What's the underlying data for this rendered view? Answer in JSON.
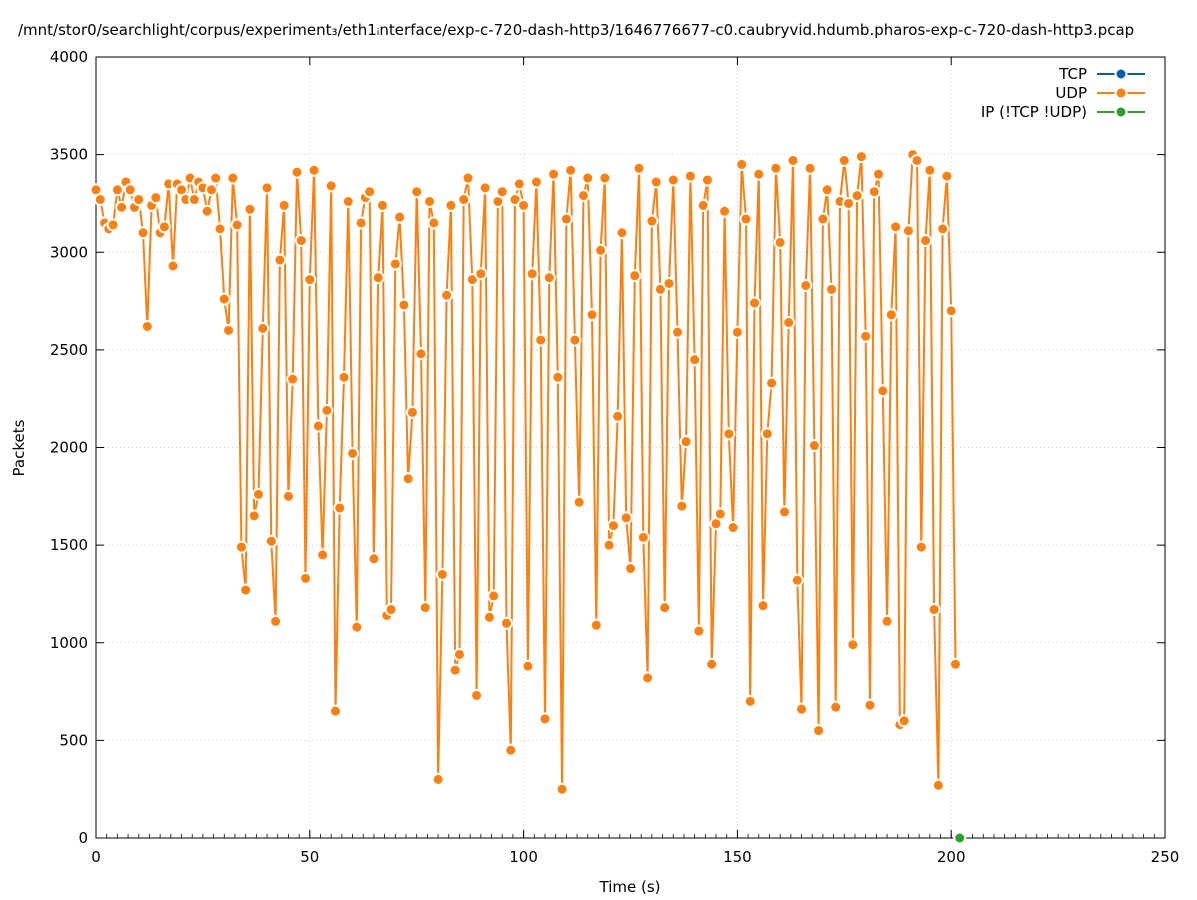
{
  "chart_data": {
    "type": "line",
    "title": "/mnt/stor0/searchlight/corpus/experiment₃/eth1ᵢnterface/exp-c-720-dash-http3/1646776677-c0.caubryvid.hdumb.pharos-exp-c-720-dash-http3.pcap",
    "xlabel": "Time (s)",
    "ylabel": "Packets",
    "xlim": [
      0,
      250
    ],
    "ylim": [
      0,
      4000
    ],
    "xticks": [
      0,
      50,
      100,
      150,
      200,
      250
    ],
    "yticks": [
      0,
      500,
      1000,
      1500,
      2000,
      2500,
      3000,
      3500,
      4000
    ],
    "grid": true,
    "legend_position": "top-right",
    "series": [
      {
        "name": "TCP",
        "color": "#0060ad",
        "x": [],
        "y": []
      },
      {
        "name": "UDP",
        "color": "#ff7f0e",
        "x": [
          0,
          1,
          2,
          3,
          4,
          5,
          6,
          7,
          8,
          9,
          10,
          11,
          12,
          13,
          14,
          15,
          16,
          17,
          18,
          19,
          20,
          21,
          22,
          23,
          24,
          25,
          26,
          27,
          28,
          29,
          30,
          31,
          32,
          33,
          34,
          35,
          36,
          37,
          38,
          39,
          40,
          41,
          42,
          43,
          44,
          45,
          46,
          47,
          48,
          49,
          50,
          51,
          52,
          53,
          54,
          55,
          56,
          57,
          58,
          59,
          60,
          61,
          62,
          63,
          64,
          65,
          66,
          67,
          68,
          69,
          70,
          71,
          72,
          73,
          74,
          75,
          76,
          77,
          78,
          79,
          80,
          81,
          82,
          83,
          84,
          85,
          86,
          87,
          88,
          89,
          90,
          91,
          92,
          93,
          94,
          95,
          96,
          97,
          98,
          99,
          100,
          101,
          102,
          103,
          104,
          105,
          106,
          107,
          108,
          109,
          110,
          111,
          112,
          113,
          114,
          115,
          116,
          117,
          118,
          119,
          120,
          121,
          122,
          123,
          124,
          125,
          126,
          127,
          128,
          129,
          130,
          131,
          132,
          133,
          134,
          135,
          136,
          137,
          138,
          139,
          140,
          141,
          142,
          143,
          144,
          145,
          146,
          147,
          148,
          149,
          150,
          151,
          152,
          153,
          154,
          155,
          156,
          157,
          158,
          159,
          160,
          161,
          162,
          163,
          164,
          165,
          166,
          167,
          168,
          169,
          170,
          171,
          172,
          173,
          174,
          175,
          176,
          177,
          178,
          179,
          180,
          181,
          182,
          183,
          184,
          185,
          186,
          187,
          188,
          189,
          190,
          191,
          192,
          193,
          194,
          195,
          196,
          197,
          198,
          199,
          200,
          201
        ],
        "y": [
          3320,
          3270,
          3150,
          3120,
          3140,
          3320,
          3230,
          3360,
          3320,
          3230,
          3270,
          3100,
          2620,
          3240,
          3280,
          3100,
          3130,
          3350,
          2930,
          3350,
          3320,
          3270,
          3380,
          3270,
          3360,
          3330,
          3210,
          3320,
          3380,
          3120,
          2760,
          2600,
          3380,
          3140,
          1490,
          1270,
          3220,
          1650,
          1760,
          2610,
          3330,
          1520,
          1110,
          2960,
          3240,
          1750,
          2350,
          3410,
          3060,
          1330,
          2860,
          3420,
          2110,
          1450,
          2190,
          3340,
          650,
          1690,
          2360,
          3260,
          1970,
          1080,
          3150,
          3280,
          3310,
          1430,
          2870,
          3240,
          1140,
          1170,
          2940,
          3180,
          2730,
          1840,
          2180,
          3310,
          2480,
          1180,
          3260,
          3150,
          300,
          1350,
          2780,
          3240,
          860,
          940,
          3270,
          3380,
          2860,
          730,
          2890,
          3330,
          1130,
          1240,
          3260,
          3310,
          1100,
          450,
          3270,
          3350,
          3240,
          880,
          2890,
          3360,
          2550,
          610,
          2870,
          3400,
          2360,
          250,
          3170,
          3420,
          2550,
          1720,
          3290,
          3380,
          2680,
          1090,
          3010,
          3380,
          1500,
          1600,
          2160,
          3100,
          1640,
          1380,
          2880,
          3430,
          1540,
          820,
          3160,
          3360,
          2810,
          1180,
          2840,
          3370,
          2590,
          1700,
          2030,
          3390,
          2450,
          1060,
          3240,
          3370,
          890,
          1610,
          1660,
          3210,
          2070,
          1590,
          2590,
          3450,
          3170,
          700,
          2740,
          3400,
          1190,
          2070,
          2330,
          3430,
          3050,
          1670,
          2640,
          3470,
          1320,
          660,
          2830,
          3430,
          2010,
          550,
          3170,
          3320,
          2810,
          670,
          3260,
          3470,
          3250,
          990,
          3290,
          3490,
          2570,
          680,
          3310,
          3400,
          2290,
          1110,
          2680,
          3130,
          580,
          600,
          3110,
          3500,
          3470,
          1490,
          3060,
          3420,
          1170,
          270,
          3120,
          3390,
          2700,
          890
        ]
      },
      {
        "name": "IP (!TCP  !UDP)",
        "color": "#2ca02c",
        "x": [
          202
        ],
        "y": [
          0
        ]
      }
    ]
  }
}
